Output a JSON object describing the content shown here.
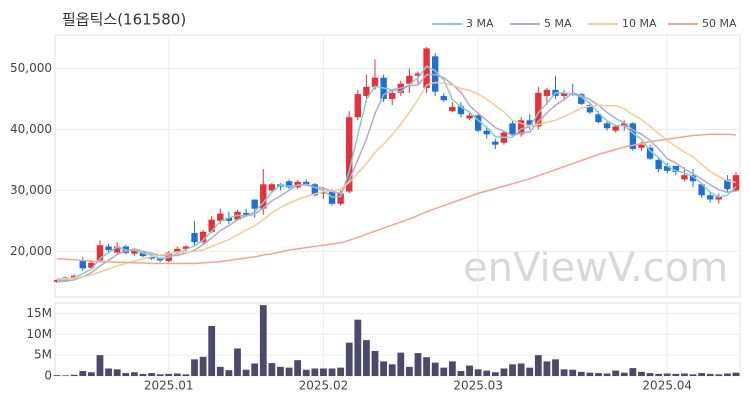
{
  "chart_data": [
    {
      "type": "candlestick",
      "title": "필옵틱스(161580)",
      "watermark": "enViewV.com",
      "up_color": "#e8303a",
      "down_color": "#1f6fd8",
      "grid": true,
      "ylim": [
        12500,
        55500
      ],
      "yticks": [
        {
          "value": 20000,
          "label": "20,000"
        },
        {
          "value": 30000,
          "label": "30,000"
        },
        {
          "value": 40000,
          "label": "40,000"
        },
        {
          "value": 50000,
          "label": "50,000"
        }
      ],
      "open": [
        15000,
        15200,
        15700,
        18500,
        17300,
        18500,
        20800,
        19800,
        20800,
        19600,
        19800,
        19100,
        18800,
        18400,
        19800,
        20400,
        23000,
        21500,
        23200,
        25000,
        25500,
        25200,
        26300,
        28500,
        27000,
        30000,
        31000,
        31500,
        30500,
        31400,
        31000,
        29500,
        30000,
        27800,
        29800,
        42000,
        45500,
        47000,
        48500,
        45000,
        46000,
        47500,
        48800,
        46800,
        52000,
        45500,
        43000,
        43800,
        41800,
        42300,
        39800,
        38000,
        37800,
        41000,
        39200,
        41500,
        40500,
        45500,
        46500,
        45500,
        46000,
        45800,
        44000,
        42500,
        41000,
        39800,
        40500,
        41000,
        37000,
        37000,
        35000,
        34000,
        34000,
        31800,
        32500,
        31000,
        29200,
        28500,
        31800,
        30000
      ],
      "high": [
        15400,
        15800,
        16200,
        19000,
        18500,
        21800,
        21200,
        21500,
        21000,
        20500,
        20000,
        19500,
        19000,
        20000,
        20800,
        21000,
        25000,
        23500,
        25800,
        27000,
        26500,
        26800,
        27000,
        28500,
        33500,
        31200,
        31200,
        31800,
        31700,
        31800,
        31200,
        30500,
        30200,
        30000,
        43000,
        46500,
        49000,
        51500,
        49000,
        46500,
        48000,
        50000,
        49500,
        53500,
        52500,
        46000,
        44500,
        44500,
        43000,
        42500,
        40500,
        38500,
        39800,
        41500,
        42000,
        42500,
        47000,
        46800,
        48800,
        46500,
        47500,
        46000,
        44500,
        43000,
        41500,
        40800,
        41500,
        41200,
        38000,
        37500,
        35500,
        34500,
        34000,
        33800,
        33500,
        31200,
        29800,
        29500,
        32500,
        33000
      ],
      "low": [
        14800,
        15000,
        15400,
        16800,
        17000,
        18200,
        19800,
        19500,
        19500,
        19200,
        19000,
        18600,
        18200,
        18200,
        19500,
        20000,
        21000,
        21200,
        23000,
        24500,
        24500,
        25000,
        25800,
        25500,
        26000,
        29500,
        30000,
        30200,
        30200,
        30800,
        29000,
        28600,
        27500,
        27500,
        29500,
        41500,
        44500,
        46500,
        44500,
        44000,
        45500,
        46000,
        47500,
        46000,
        45500,
        44500,
        42800,
        42000,
        41500,
        39500,
        38500,
        36800,
        37500,
        39000,
        38800,
        40000,
        40000,
        44000,
        45000,
        45000,
        45500,
        44000,
        42500,
        41000,
        39800,
        39500,
        39800,
        36500,
        36500,
        35000,
        33000,
        32800,
        32500,
        31500,
        30500,
        28800,
        28000,
        27800,
        29800,
        29800
      ],
      "close": [
        15300,
        15700,
        16000,
        17200,
        18100,
        21000,
        20200,
        20800,
        19700,
        20100,
        19200,
        18800,
        18500,
        19800,
        20400,
        20800,
        21500,
        23200,
        25200,
        26200,
        25000,
        26500,
        26000,
        27000,
        31000,
        31000,
        30600,
        30500,
        31400,
        31000,
        29200,
        29800,
        27800,
        29500,
        42000,
        45800,
        47000,
        48500,
        45000,
        46000,
        47500,
        48800,
        49200,
        53300,
        46200,
        44800,
        43700,
        42500,
        42300,
        39800,
        39200,
        37500,
        39500,
        39200,
        41500,
        40500,
        46000,
        46500,
        45500,
        46000,
        45800,
        44200,
        42800,
        41200,
        40200,
        40500,
        41000,
        36800,
        37500,
        35200,
        33500,
        33200,
        33000,
        32500,
        31500,
        29200,
        28500,
        29000,
        30200,
        32500
      ],
      "series": [
        {
          "name": "3 MA",
          "color": "#7fd0cc",
          "values": [
            15200,
            15300,
            15700,
            16300,
            17100,
            18800,
            19800,
            20700,
            20200,
            20200,
            19700,
            19400,
            18800,
            19000,
            19600,
            20300,
            20900,
            21800,
            23300,
            24900,
            25500,
            25900,
            25800,
            26500,
            28000,
            29700,
            30900,
            30700,
            30800,
            31000,
            30500,
            30000,
            28900,
            29000,
            33100,
            39100,
            44900,
            47100,
            46800,
            46500,
            46200,
            47400,
            48500,
            50400,
            49600,
            48100,
            44900,
            43700,
            42800,
            41500,
            40400,
            38800,
            38700,
            38700,
            40100,
            40400,
            42700,
            44300,
            46000,
            46000,
            45800,
            45300,
            44300,
            42700,
            41400,
            40600,
            40600,
            39400,
            38400,
            36500,
            35400,
            34000,
            33200,
            32900,
            32300,
            31100,
            29700,
            28900,
            29200,
            30600
          ]
        },
        {
          "name": "5 MA",
          "color": "#b8a6cc",
          "values": [
            15000,
            15100,
            15300,
            15800,
            16500,
            17600,
            18500,
            19500,
            20000,
            20400,
            20000,
            19700,
            19300,
            19300,
            19300,
            19700,
            20200,
            21100,
            22200,
            23400,
            24200,
            25200,
            25800,
            26100,
            27100,
            28300,
            29100,
            30000,
            30900,
            30900,
            30500,
            30400,
            29800,
            29500,
            31700,
            35000,
            38400,
            42600,
            45700,
            46500,
            46800,
            47200,
            47300,
            49000,
            49000,
            48500,
            47400,
            46100,
            43900,
            42600,
            41500,
            40300,
            39700,
            39000,
            39400,
            39600,
            41300,
            42700,
            44000,
            44900,
            46000,
            45600,
            44900,
            44000,
            42800,
            41800,
            41100,
            39900,
            39200,
            38200,
            36800,
            35200,
            34500,
            33500,
            32700,
            31900,
            30900,
            30100,
            29700,
            29900
          ]
        },
        {
          "name": "10 MA",
          "color": "#f2cc98",
          "values": [
            15500,
            15500,
            15600,
            15800,
            16100,
            16600,
            17100,
            17600,
            18000,
            18400,
            18800,
            19100,
            19400,
            19600,
            19900,
            19800,
            20000,
            20200,
            20800,
            21400,
            21900,
            22700,
            23500,
            24200,
            25200,
            26300,
            27200,
            27900,
            28500,
            29000,
            29400,
            29800,
            29900,
            30200,
            31300,
            32800,
            34400,
            36200,
            37600,
            39100,
            40900,
            42800,
            44900,
            47300,
            47700,
            47600,
            47300,
            46700,
            46400,
            45800,
            45000,
            43900,
            42900,
            41500,
            41000,
            40600,
            40800,
            41200,
            41500,
            42100,
            42800,
            43500,
            43800,
            44000,
            43900,
            43900,
            43400,
            42400,
            41600,
            40500,
            39300,
            38200,
            37200,
            36300,
            35500,
            34300,
            33100,
            32300,
            31600,
            31300
          ]
        },
        {
          "name": "50 MA",
          "color": "#f3a493",
          "values": [
            18800,
            18700,
            18600,
            18500,
            18400,
            18300,
            18300,
            18200,
            18200,
            18100,
            18100,
            18000,
            18000,
            18000,
            18000,
            18000,
            18000,
            18100,
            18200,
            18300,
            18500,
            18700,
            18900,
            19100,
            19400,
            19600,
            19900,
            20200,
            20400,
            20600,
            20800,
            21000,
            21200,
            21400,
            21800,
            22300,
            22800,
            23300,
            23800,
            24300,
            24800,
            25300,
            25900,
            26500,
            27000,
            27500,
            28000,
            28500,
            29000,
            29500,
            29900,
            30300,
            30700,
            31100,
            31500,
            31900,
            32400,
            32900,
            33400,
            33900,
            34400,
            34900,
            35400,
            35900,
            36300,
            36700,
            37100,
            37400,
            37700,
            38000,
            38200,
            38400,
            38600,
            38800,
            39000,
            39100,
            39200,
            39200,
            39200,
            39100
          ]
        }
      ]
    },
    {
      "type": "bar",
      "color": "#4a4a6e",
      "grid": true,
      "categories": [
        null,
        null,
        null,
        null,
        null,
        null,
        null,
        null,
        null,
        null,
        null,
        null,
        null,
        "2025.01",
        null,
        null,
        null,
        null,
        null,
        null,
        null,
        null,
        null,
        null,
        null,
        null,
        null,
        null,
        null,
        null,
        null,
        "2025.02",
        null,
        null,
        null,
        null,
        null,
        null,
        null,
        null,
        null,
        null,
        null,
        null,
        null,
        null,
        null,
        null,
        null,
        "2025.03",
        null,
        null,
        null,
        null,
        null,
        null,
        null,
        null,
        null,
        null,
        null,
        null,
        null,
        null,
        null,
        null,
        null,
        null,
        null,
        null,
        null,
        "2025.04",
        null,
        null,
        null,
        null,
        null,
        null,
        null,
        null
      ],
      "values": [
        200000,
        150000,
        300000,
        1200000,
        900000,
        5000000,
        1800000,
        1600000,
        700000,
        900000,
        500000,
        700000,
        400000,
        500000,
        600000,
        400000,
        4000000,
        4600000,
        12000000,
        2200000,
        1400000,
        6600000,
        1500000,
        3000000,
        17000000,
        3100000,
        2200000,
        2000000,
        3800000,
        1500000,
        1800000,
        1800000,
        1800000,
        2000000,
        8000000,
        13500000,
        8600000,
        6000000,
        3500000,
        2800000,
        5600000,
        2200000,
        5500000,
        4500000,
        3200000,
        2000000,
        3500000,
        1200000,
        2500000,
        1600000,
        1300000,
        900000,
        1800000,
        2800000,
        3000000,
        2000000,
        5000000,
        3500000,
        4000000,
        1600000,
        1500000,
        1000000,
        800000,
        700000,
        600000,
        1300000,
        800000,
        1900000,
        1000000,
        700000,
        500000,
        600000,
        500000,
        600000,
        400000,
        700000,
        500000,
        400000,
        600000,
        800000
      ],
      "ylim": [
        0,
        17500000
      ],
      "yticks": [
        0,
        {
          "value": 5000000,
          "label": "5M"
        },
        {
          "value": 10000000,
          "label": "10M"
        },
        {
          "value": 15000000,
          "label": "15M"
        }
      ]
    }
  ]
}
